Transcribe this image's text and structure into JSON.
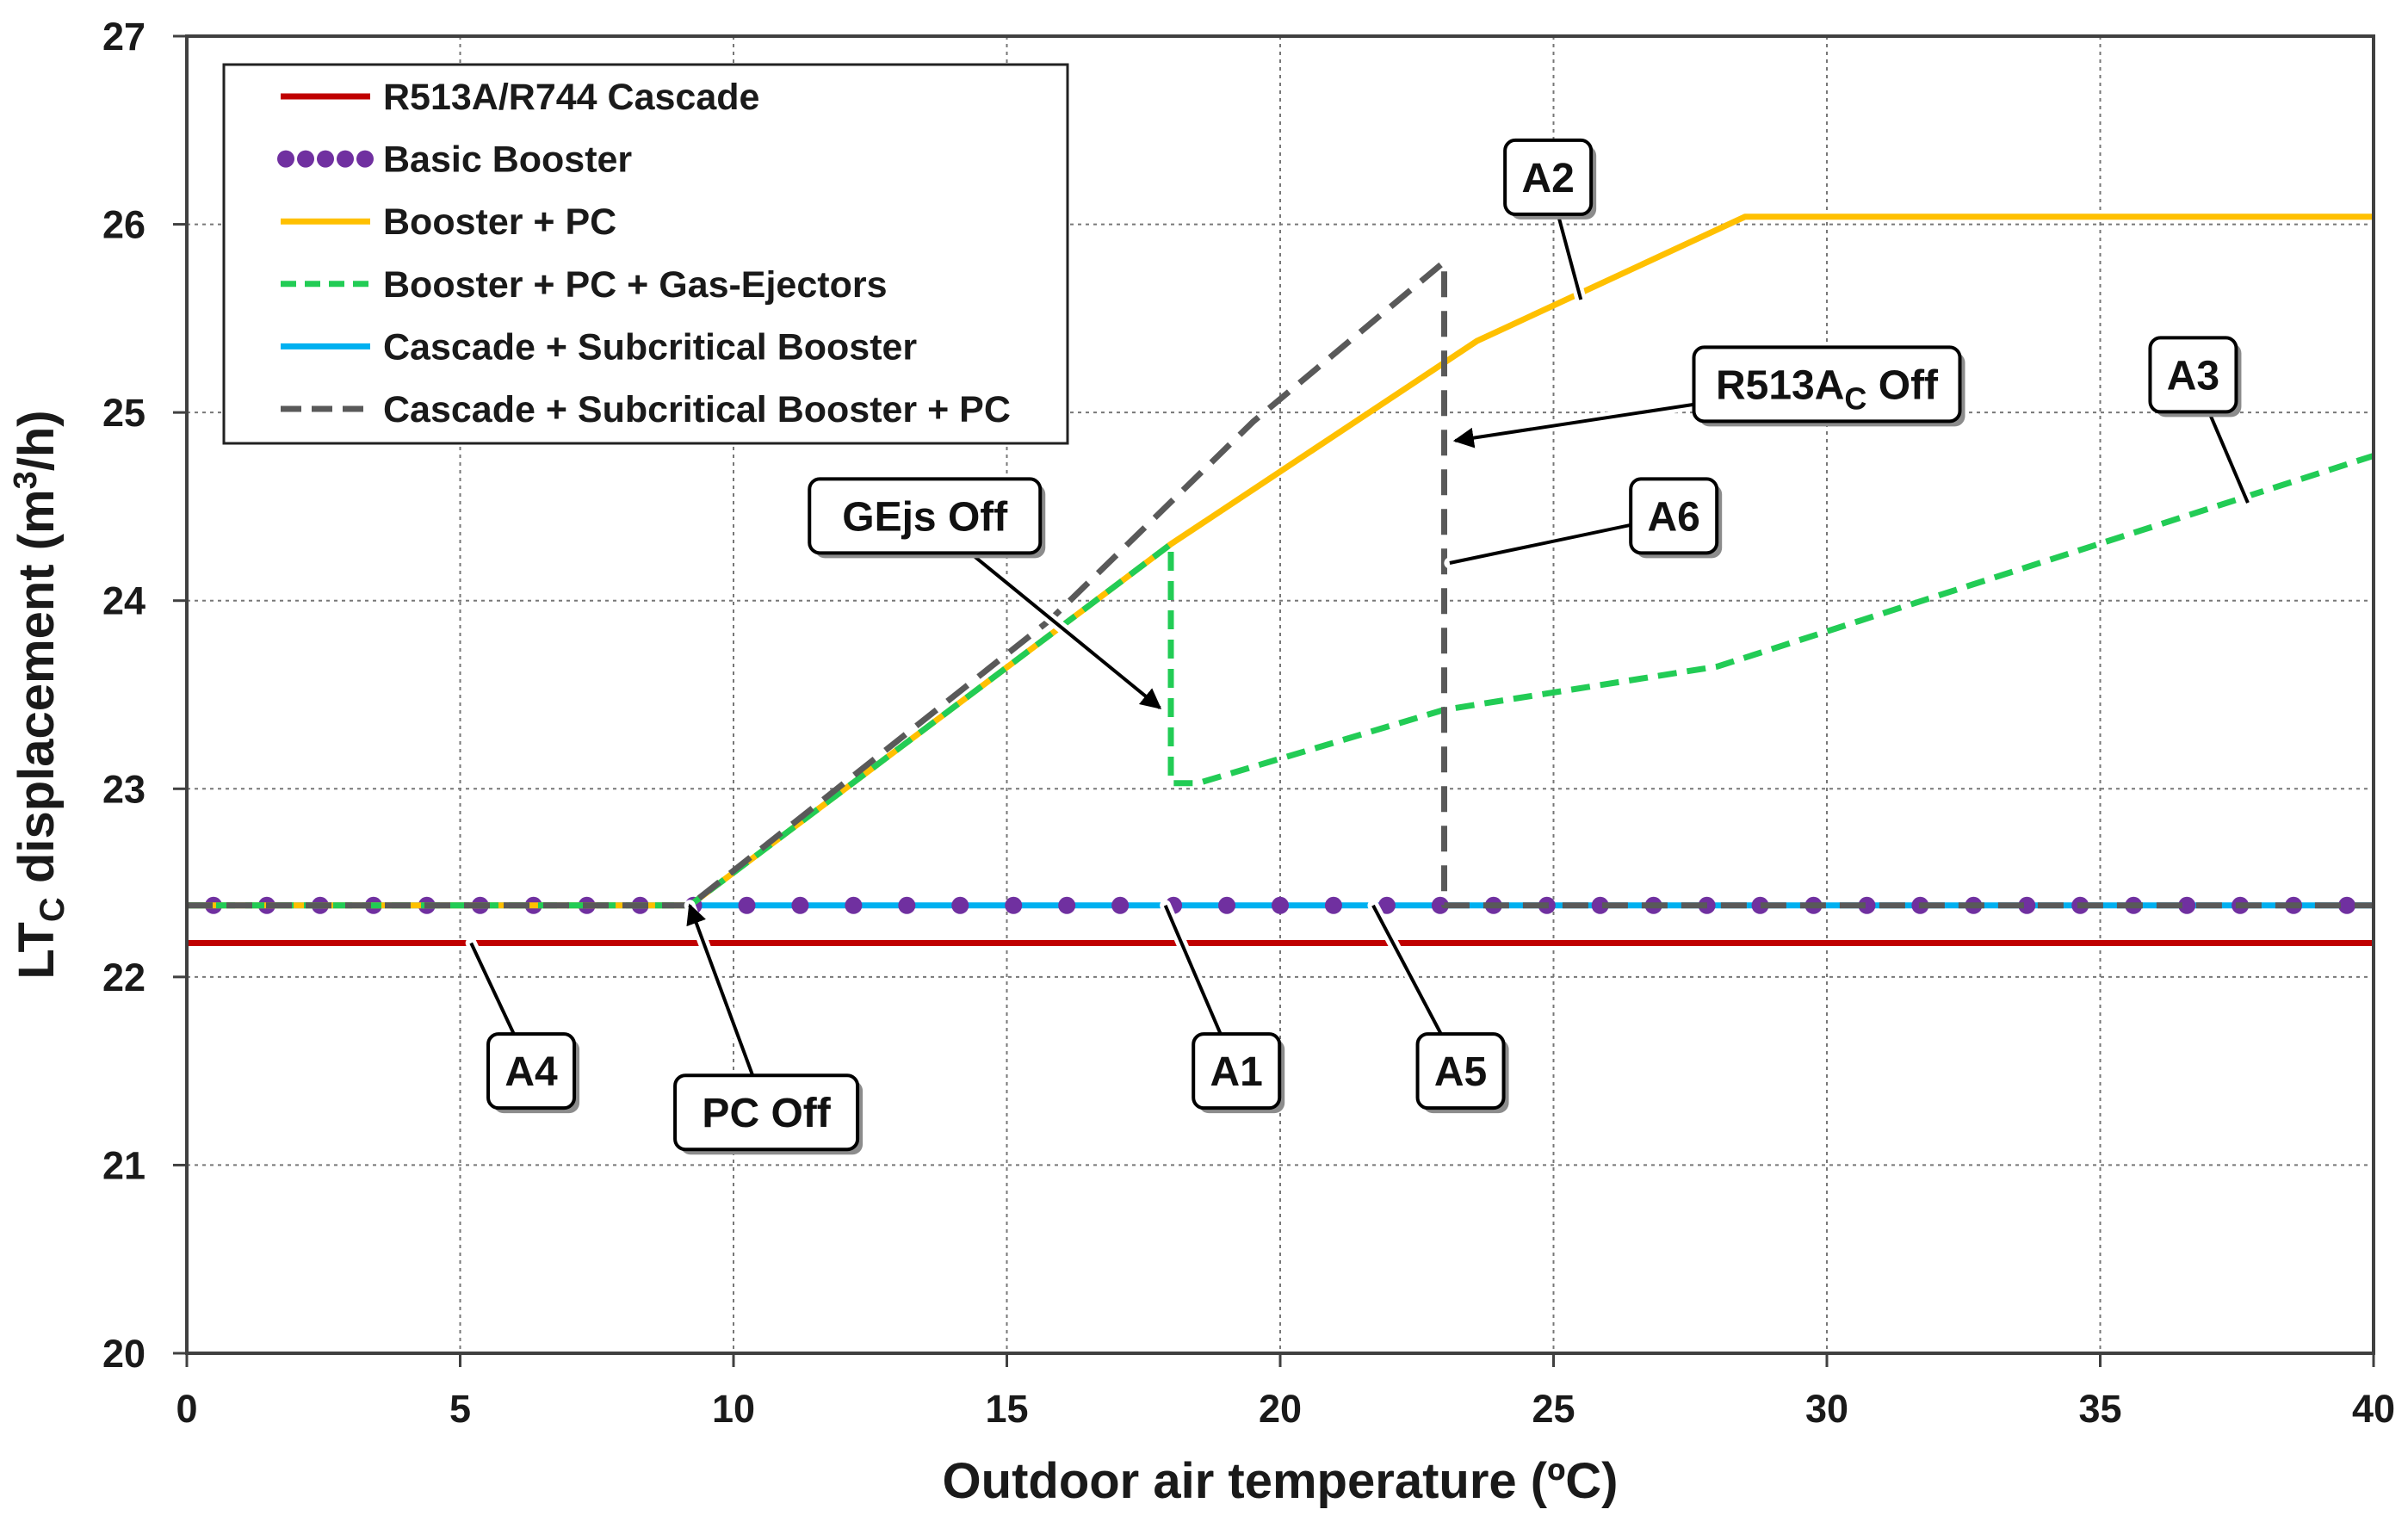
{
  "chart_data": {
    "type": "line",
    "xlabel": "Outdoor air temperature (ºC)",
    "ylabel": "LTC displacement (m3/h)",
    "ylabel_parts": {
      "main": "LT",
      "sub": "C",
      "mid": " displacement (m",
      "sup": "3",
      "end": "/h)"
    },
    "xlim": [
      0,
      40
    ],
    "ylim": [
      20,
      27
    ],
    "xticks": [
      0,
      5,
      10,
      15,
      20,
      25,
      30,
      35,
      40
    ],
    "yticks": [
      20,
      21,
      22,
      23,
      24,
      25,
      26,
      27
    ],
    "grid": true,
    "legend_position": "top-left",
    "series": [
      {
        "name": "R513A/R744 Cascade",
        "color": "#c00000",
        "style": "solid",
        "x": [
          0,
          40
        ],
        "y": [
          22.18,
          22.18
        ]
      },
      {
        "name": "Basic Booster",
        "color": "#7030a0",
        "style": "dots",
        "x": [
          0,
          40
        ],
        "y": [
          22.38,
          22.38
        ]
      },
      {
        "name": "Booster + PC",
        "color": "#ffc000",
        "style": "solid",
        "x": [
          0,
          9.2,
          18,
          23.6,
          28.5,
          40
        ],
        "y": [
          22.38,
          22.38,
          24.3,
          25.38,
          26.04,
          26.04
        ]
      },
      {
        "name": "Booster + PC + Gas-Ejectors",
        "color": "#22cc55",
        "style": "dashed",
        "x": [
          0,
          9.2,
          18,
          18,
          18.5,
          23,
          28,
          40
        ],
        "y": [
          22.38,
          22.38,
          24.3,
          23.03,
          23.03,
          23.42,
          23.65,
          24.77
        ]
      },
      {
        "name": "Cascade + Subcritical Booster",
        "color": "#00b0f0",
        "style": "solid",
        "x": [
          0,
          40
        ],
        "y": [
          22.38,
          22.38
        ]
      },
      {
        "name": "Cascade + Subcritical Booster + PC",
        "color": "#595959",
        "style": "dashed",
        "x": [
          0,
          9.2,
          15.8,
          19.5,
          23,
          23,
          40
        ],
        "y": [
          22.38,
          22.38,
          23.9,
          24.95,
          25.8,
          22.38,
          22.38
        ]
      }
    ],
    "annotations": [
      {
        "label": "A1",
        "text_x": 19.2,
        "text_y": 21.5,
        "tips": [
          [
            17.9,
            22.38
          ]
        ]
      },
      {
        "label": "A2",
        "text_x": 24.9,
        "text_y": 26.25,
        "tips": [
          [
            25.5,
            25.6
          ]
        ]
      },
      {
        "label": "A3",
        "text_x": 36.7,
        "text_y": 25.2,
        "tips": [
          [
            37.7,
            24.52
          ]
        ]
      },
      {
        "label": "A4",
        "text_x": 6.3,
        "text_y": 21.5,
        "tips": [
          [
            5.2,
            22.18
          ]
        ]
      },
      {
        "label": "A5",
        "text_x": 23.3,
        "text_y": 21.5,
        "tips": [
          [
            21.7,
            22.38
          ]
        ]
      },
      {
        "label": "A6",
        "text_x": 27.2,
        "text_y": 24.45,
        "tips": [
          [
            23.1,
            24.2
          ]
        ]
      },
      {
        "label": "GEjs Off",
        "text_x": 13.5,
        "text_y": 24.45,
        "tips": [
          [
            17.8,
            23.43
          ]
        ],
        "arrow": true
      },
      {
        "label": "R513AC Off",
        "text_x": 30,
        "text_y": 25.15,
        "label_main": "R513A",
        "label_sub": "C",
        "label_end": " Off",
        "tips": [
          [
            23.2,
            24.85
          ]
        ],
        "arrow": true
      },
      {
        "label": "PC Off",
        "text_x": 10.6,
        "text_y": 21.28,
        "tips": [
          [
            9.2,
            22.38
          ]
        ],
        "arrow": true
      }
    ]
  }
}
